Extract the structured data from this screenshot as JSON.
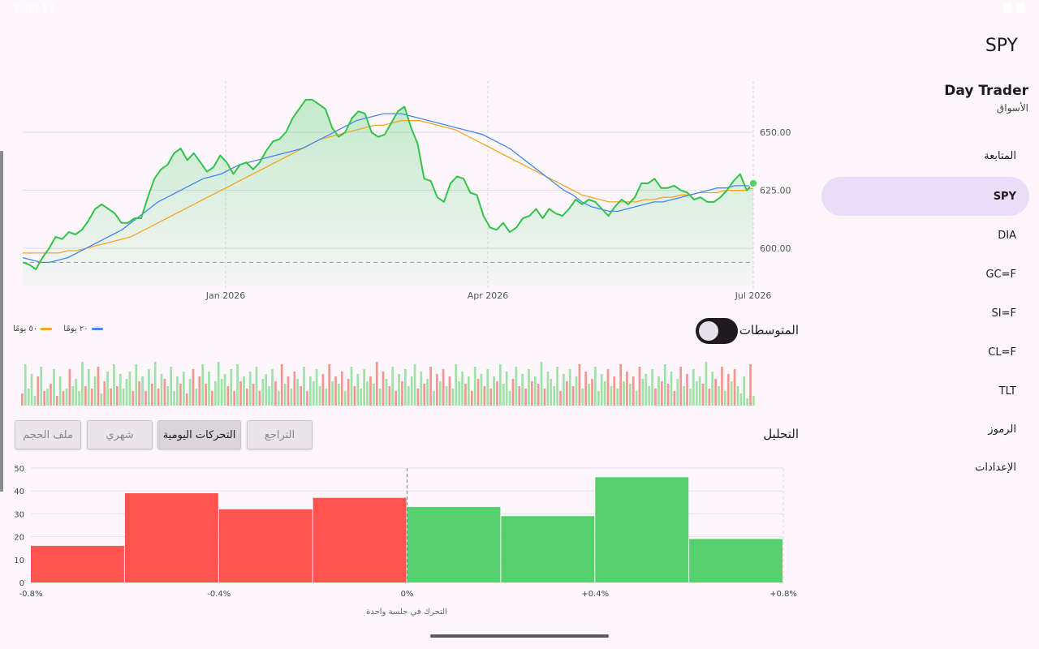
{
  "status": {
    "time": "8:00 17"
  },
  "nav": {
    "symbol_title": "SPY",
    "app_name": "Day Trader",
    "app_subtitle": "الأسواق",
    "items": [
      {
        "label": "المتابعة",
        "kind": "section"
      },
      {
        "label": "SPY",
        "kind": "symbol",
        "active": true
      },
      {
        "label": "DIA",
        "kind": "symbol"
      },
      {
        "label": "GC=F",
        "kind": "symbol"
      },
      {
        "label": "SI=F",
        "kind": "symbol"
      },
      {
        "label": "CL=F",
        "kind": "symbol"
      },
      {
        "label": "TLT",
        "kind": "symbol"
      },
      {
        "label": "الرموز",
        "kind": "section"
      },
      {
        "label": "الإعدادات",
        "kind": "section"
      }
    ]
  },
  "controls": {
    "moving_averages_label": "المتوسطات",
    "moving_averages_on": false,
    "analysis_label": "التحليل",
    "tabs": [
      {
        "label": "التراجع",
        "active": false
      },
      {
        "label": "التحركات اليومية",
        "active": true
      },
      {
        "label": "شهري",
        "active": false
      },
      {
        "label": "ملف الحجم",
        "active": false
      }
    ]
  },
  "legend": [
    {
      "label": "٢٠ يومًا",
      "color": "#4285f4"
    },
    {
      "label": "٥٠ يومًا",
      "color": "#f5a623"
    }
  ],
  "colors": {
    "price_line": "#34c24a",
    "ma20": "#4285f4",
    "ma50": "#f5a623",
    "up": "#56d06f",
    "down": "#ff544d"
  },
  "chart_data": [
    {
      "type": "line",
      "x_ticks": [
        "Jan 2026",
        "Apr 2026",
        "Jul 2026"
      ],
      "y_ticks": [
        "600.00",
        "625.00",
        "650.00"
      ],
      "ylim": [
        584,
        672
      ],
      "reference_line": 594,
      "series": [
        {
          "name": "price",
          "values": [
            594,
            593,
            591,
            596,
            600,
            605,
            604,
            607,
            606,
            608,
            612,
            617,
            619,
            617,
            615,
            611,
            611,
            613,
            613,
            622,
            630,
            634,
            636,
            641,
            643,
            638,
            641,
            637,
            633,
            635,
            640,
            637,
            632,
            636,
            637,
            634,
            637,
            642,
            646,
            647,
            650,
            656,
            660,
            664,
            664,
            662,
            660,
            652,
            648,
            650,
            656,
            659,
            658,
            650,
            648,
            649,
            654,
            659,
            661,
            652,
            645,
            630,
            629,
            622,
            620,
            628,
            631,
            630,
            624,
            623,
            614,
            609,
            608,
            611,
            607,
            609,
            613,
            614,
            617,
            613,
            617,
            615,
            614,
            617,
            621,
            619,
            621,
            620,
            617,
            614,
            618,
            621,
            619,
            622,
            628,
            628,
            630,
            626,
            626,
            627,
            625,
            624,
            621,
            622,
            620,
            620,
            622,
            625,
            629,
            632,
            625,
            628
          ]
        },
        {
          "name": "20 يومًا",
          "values": [
            596,
            595,
            594,
            594,
            595,
            596,
            598,
            600,
            602,
            604,
            606,
            608,
            611,
            614,
            617,
            620,
            622,
            624,
            626,
            628,
            630,
            631,
            632,
            634,
            636,
            637,
            638,
            639,
            640,
            641,
            642,
            643,
            645,
            647,
            649,
            651,
            653,
            655,
            656,
            657,
            658,
            658,
            658,
            657,
            656,
            655,
            654,
            653,
            652,
            651,
            650,
            649,
            647,
            645,
            643,
            640,
            637,
            634,
            631,
            628,
            625,
            623,
            620,
            618,
            617,
            616,
            616,
            617,
            618,
            619,
            620,
            620,
            621,
            622,
            623,
            624,
            625,
            626,
            626,
            627,
            627,
            627
          ]
        },
        {
          "name": "50 يومًا",
          "values": [
            598,
            598,
            598,
            598,
            598,
            599,
            599,
            600,
            601,
            602,
            603,
            604,
            605,
            607,
            609,
            611,
            613,
            615,
            617,
            619,
            621,
            623,
            625,
            627,
            629,
            631,
            633,
            635,
            637,
            639,
            641,
            643,
            645,
            647,
            648,
            649,
            650,
            651,
            652,
            653,
            653,
            654,
            655,
            655,
            655,
            654,
            653,
            652,
            651,
            649,
            647,
            645,
            643,
            641,
            639,
            637,
            635,
            633,
            631,
            629,
            627,
            625,
            623,
            622,
            621,
            620,
            620,
            620,
            620,
            621,
            621,
            622,
            622,
            623,
            623,
            624,
            624,
            624,
            625,
            625,
            625,
            626
          ]
        }
      ]
    },
    {
      "type": "bar",
      "name": "volume",
      "colors_note": "green=up, red=down",
      "values": [
        0.25,
        0.85,
        0.35,
        0.65,
        0.2,
        0.6,
        0.8,
        0.3,
        0.35,
        0.45,
        0.75,
        0.2,
        0.6,
        0.3,
        0.35,
        0.75,
        0.4,
        0.55,
        0.3,
        0.9,
        0.4,
        0.75,
        0.35,
        0.6,
        0.8,
        0.25,
        0.5,
        0.7,
        0.35,
        0.85,
        0.4,
        0.65,
        0.35,
        0.55,
        0.7,
        0.3,
        0.85,
        0.5,
        0.6,
        0.3,
        0.75,
        0.45,
        0.9,
        0.35,
        0.65,
        0.55,
        0.4,
        0.8,
        0.3,
        0.6,
        0.45,
        0.7,
        0.25,
        0.55,
        0.75,
        0.35,
        0.6,
        0.85,
        0.45,
        0.7,
        0.3,
        0.5,
        0.9,
        0.55,
        0.65,
        0.4,
        0.75,
        0.3,
        0.85,
        0.5,
        0.6,
        0.35,
        0.7,
        0.45,
        0.8,
        0.3,
        0.55,
        0.65,
        0.4,
        0.75,
        0.5,
        0.3,
        0.85,
        0.45,
        0.6,
        0.35,
        0.7,
        0.55,
        0.4,
        0.8,
        0.3,
        0.6,
        0.5,
        0.75,
        0.4,
        0.65,
        0.35,
        0.85,
        0.5,
        0.6,
        0.45,
        0.7,
        0.3,
        0.55,
        0.8,
        0.4,
        0.65,
        0.35,
        0.75,
        0.5,
        0.6,
        0.45,
        0.9,
        0.35,
        0.7,
        0.55,
        0.4,
        0.8,
        0.3,
        0.65,
        0.5,
        0.75,
        0.4,
        0.6,
        0.85,
        0.35,
        0.7,
        0.45,
        0.55,
        0.8,
        0.3,
        0.65,
        0.5,
        0.75,
        0.4,
        0.6,
        0.35,
        0.85,
        0.5,
        0.7,
        0.45,
        0.6,
        0.3,
        0.8,
        0.55,
        0.65,
        0.4,
        0.75,
        0.35,
        0.6,
        0.5,
        0.85,
        0.45,
        0.7,
        0.3,
        0.55,
        0.8,
        0.4,
        0.65,
        0.35,
        0.75,
        0.5,
        0.6,
        0.45,
        0.9,
        0.35,
        0.7,
        0.55,
        0.4,
        0.8,
        0.3,
        0.65,
        0.5,
        0.75,
        0.4,
        0.6,
        0.85,
        0.35,
        0.7,
        0.45,
        0.55,
        0.8,
        0.3,
        0.65,
        0.5,
        0.75,
        0.4,
        0.6,
        0.35,
        0.85,
        0.5,
        0.7,
        0.45,
        0.6,
        0.3,
        0.8,
        0.55,
        0.65,
        0.4,
        0.75,
        0.35,
        0.6,
        0.5,
        0.85,
        0.45,
        0.7,
        0.3,
        0.55,
        0.8,
        0.4,
        0.65,
        0.35,
        0.75,
        0.5,
        0.6,
        0.45,
        0.9,
        0.35,
        0.7,
        0.55,
        0.4,
        0.8,
        0.3,
        0.65,
        0.5,
        0.75,
        0.4,
        0.25,
        0.6,
        0.15,
        0.85,
        0.2
      ],
      "directions": "mixed"
    },
    {
      "type": "bar",
      "name": "daily moves histogram",
      "categories": [
        "-0.8%",
        "-0.6%",
        "-0.4%",
        "-0.2%",
        "0%",
        "+0.2%",
        "+0.4%",
        "+0.6%"
      ],
      "values": [
        16,
        39,
        32,
        37,
        33,
        29,
        46,
        19
      ],
      "x_ticks": [
        "-0.8%",
        "-0.4%",
        "0%",
        "+0.4%",
        "+0.8%"
      ],
      "y_ticks": [
        "0",
        "10",
        "20",
        "30",
        "40",
        "50"
      ],
      "ylim": [
        0,
        50
      ],
      "xlabel": "التحرك في جلسة واحدة"
    }
  ]
}
